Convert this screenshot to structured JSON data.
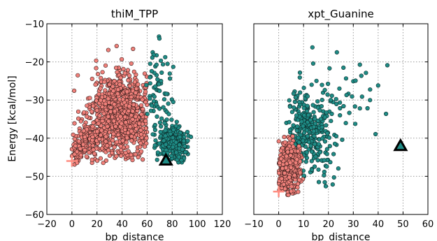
{
  "figure": {
    "shared_ylabel": "Energy [kcal/mol]",
    "colors": {
      "sample_fill": "#f0807a",
      "sample_edge": "#3a1f1d",
      "reference_fill": "#1f8c86",
      "reference_edge": "#0b2b29",
      "mfe_marker": "#ff8c80",
      "target_marker_fill": "#1f8c86",
      "target_marker_edge": "#000000",
      "grid": "#9a9a9a"
    }
  },
  "chart_data": [
    {
      "type": "scatter",
      "title": "thiM_TPP",
      "xlabel": "bp_distance",
      "ylabel": "Energy [kcal/mol]",
      "xlim": [
        -20,
        120
      ],
      "ylim": [
        -60,
        -10
      ],
      "xticks": [
        "−20",
        "0",
        "20",
        "40",
        "60",
        "80",
        "100",
        "120"
      ],
      "xtick_values": [
        -20,
        0,
        20,
        40,
        60,
        80,
        100,
        120
      ],
      "yticks": [
        "−60",
        "−50",
        "−40",
        "−30",
        "−20",
        "−10"
      ],
      "ytick_values": [
        -60,
        -50,
        -40,
        -30,
        -20,
        -10
      ],
      "grid": true,
      "series": [
        {
          "role": "sample",
          "color": "#f0807a",
          "clusters": [
            {
              "cx": 40,
              "cy": -34,
              "sx": 12,
              "sy": 5.5,
              "n": 900,
              "xmin": 0,
              "xmax": 60,
              "ymin": -46,
              "ymax": -14
            },
            {
              "cx": 15,
              "cy": -40,
              "sx": 7,
              "sy": 3,
              "n": 160,
              "xmin": 0,
              "xmax": 35,
              "ymin": -47,
              "ymax": -30
            },
            {
              "cx": 4,
              "cy": -44,
              "sx": 3,
              "sy": 1.5,
              "n": 40,
              "xmin": 0,
              "xmax": 12,
              "ymin": -47,
              "ymax": -40
            }
          ]
        },
        {
          "role": "reference",
          "color": "#1f8c86",
          "clusters": [
            {
              "cx": 80,
              "cy": -41,
              "sx": 6,
              "sy": 2.5,
              "n": 260,
              "xmin": 60,
              "xmax": 95,
              "ymin": -47,
              "ymax": -33
            },
            {
              "cx": 68,
              "cy": -28,
              "sx": 7,
              "sy": 7,
              "n": 70,
              "xmin": 58,
              "xmax": 90,
              "ymin": -45,
              "ymax": -10
            }
          ]
        }
      ],
      "mfe_point": {
        "x": 0,
        "y": -46
      },
      "target_point": {
        "x": 75,
        "y": -45.8
      }
    },
    {
      "type": "scatter",
      "title": "xpt_Guanine",
      "xlabel": "bp_distance",
      "ylabel": "",
      "xlim": [
        -10,
        60
      ],
      "ylim": [
        -60,
        -10
      ],
      "xticks": [
        "−10",
        "0",
        "10",
        "20",
        "30",
        "40",
        "50",
        "60"
      ],
      "xtick_values": [
        -10,
        0,
        10,
        20,
        30,
        40,
        50,
        60
      ],
      "yticks": [],
      "grid": true,
      "series": [
        {
          "role": "reference",
          "color": "#1f8c86",
          "clusters": [
            {
              "cx": 12,
              "cy": -38,
              "sx": 5,
              "sy": 6,
              "n": 320,
              "xmin": 3,
              "xmax": 28,
              "ymin": -53,
              "ymax": -22
            },
            {
              "cx": 25,
              "cy": -28,
              "sx": 9,
              "sy": 6,
              "n": 40,
              "xmin": 12,
              "xmax": 50,
              "ymin": -45,
              "ymax": -13
            }
          ]
        },
        {
          "role": "sample",
          "color": "#f0807a",
          "clusters": [
            {
              "cx": 4,
              "cy": -48,
              "sx": 2.3,
              "sy": 3.2,
              "n": 520,
              "xmin": 0,
              "xmax": 10,
              "ymin": -55,
              "ymax": -39
            }
          ]
        }
      ],
      "mfe_point": {
        "x": 0,
        "y": -54
      },
      "target_point": {
        "x": 49,
        "y": -42
      }
    }
  ]
}
